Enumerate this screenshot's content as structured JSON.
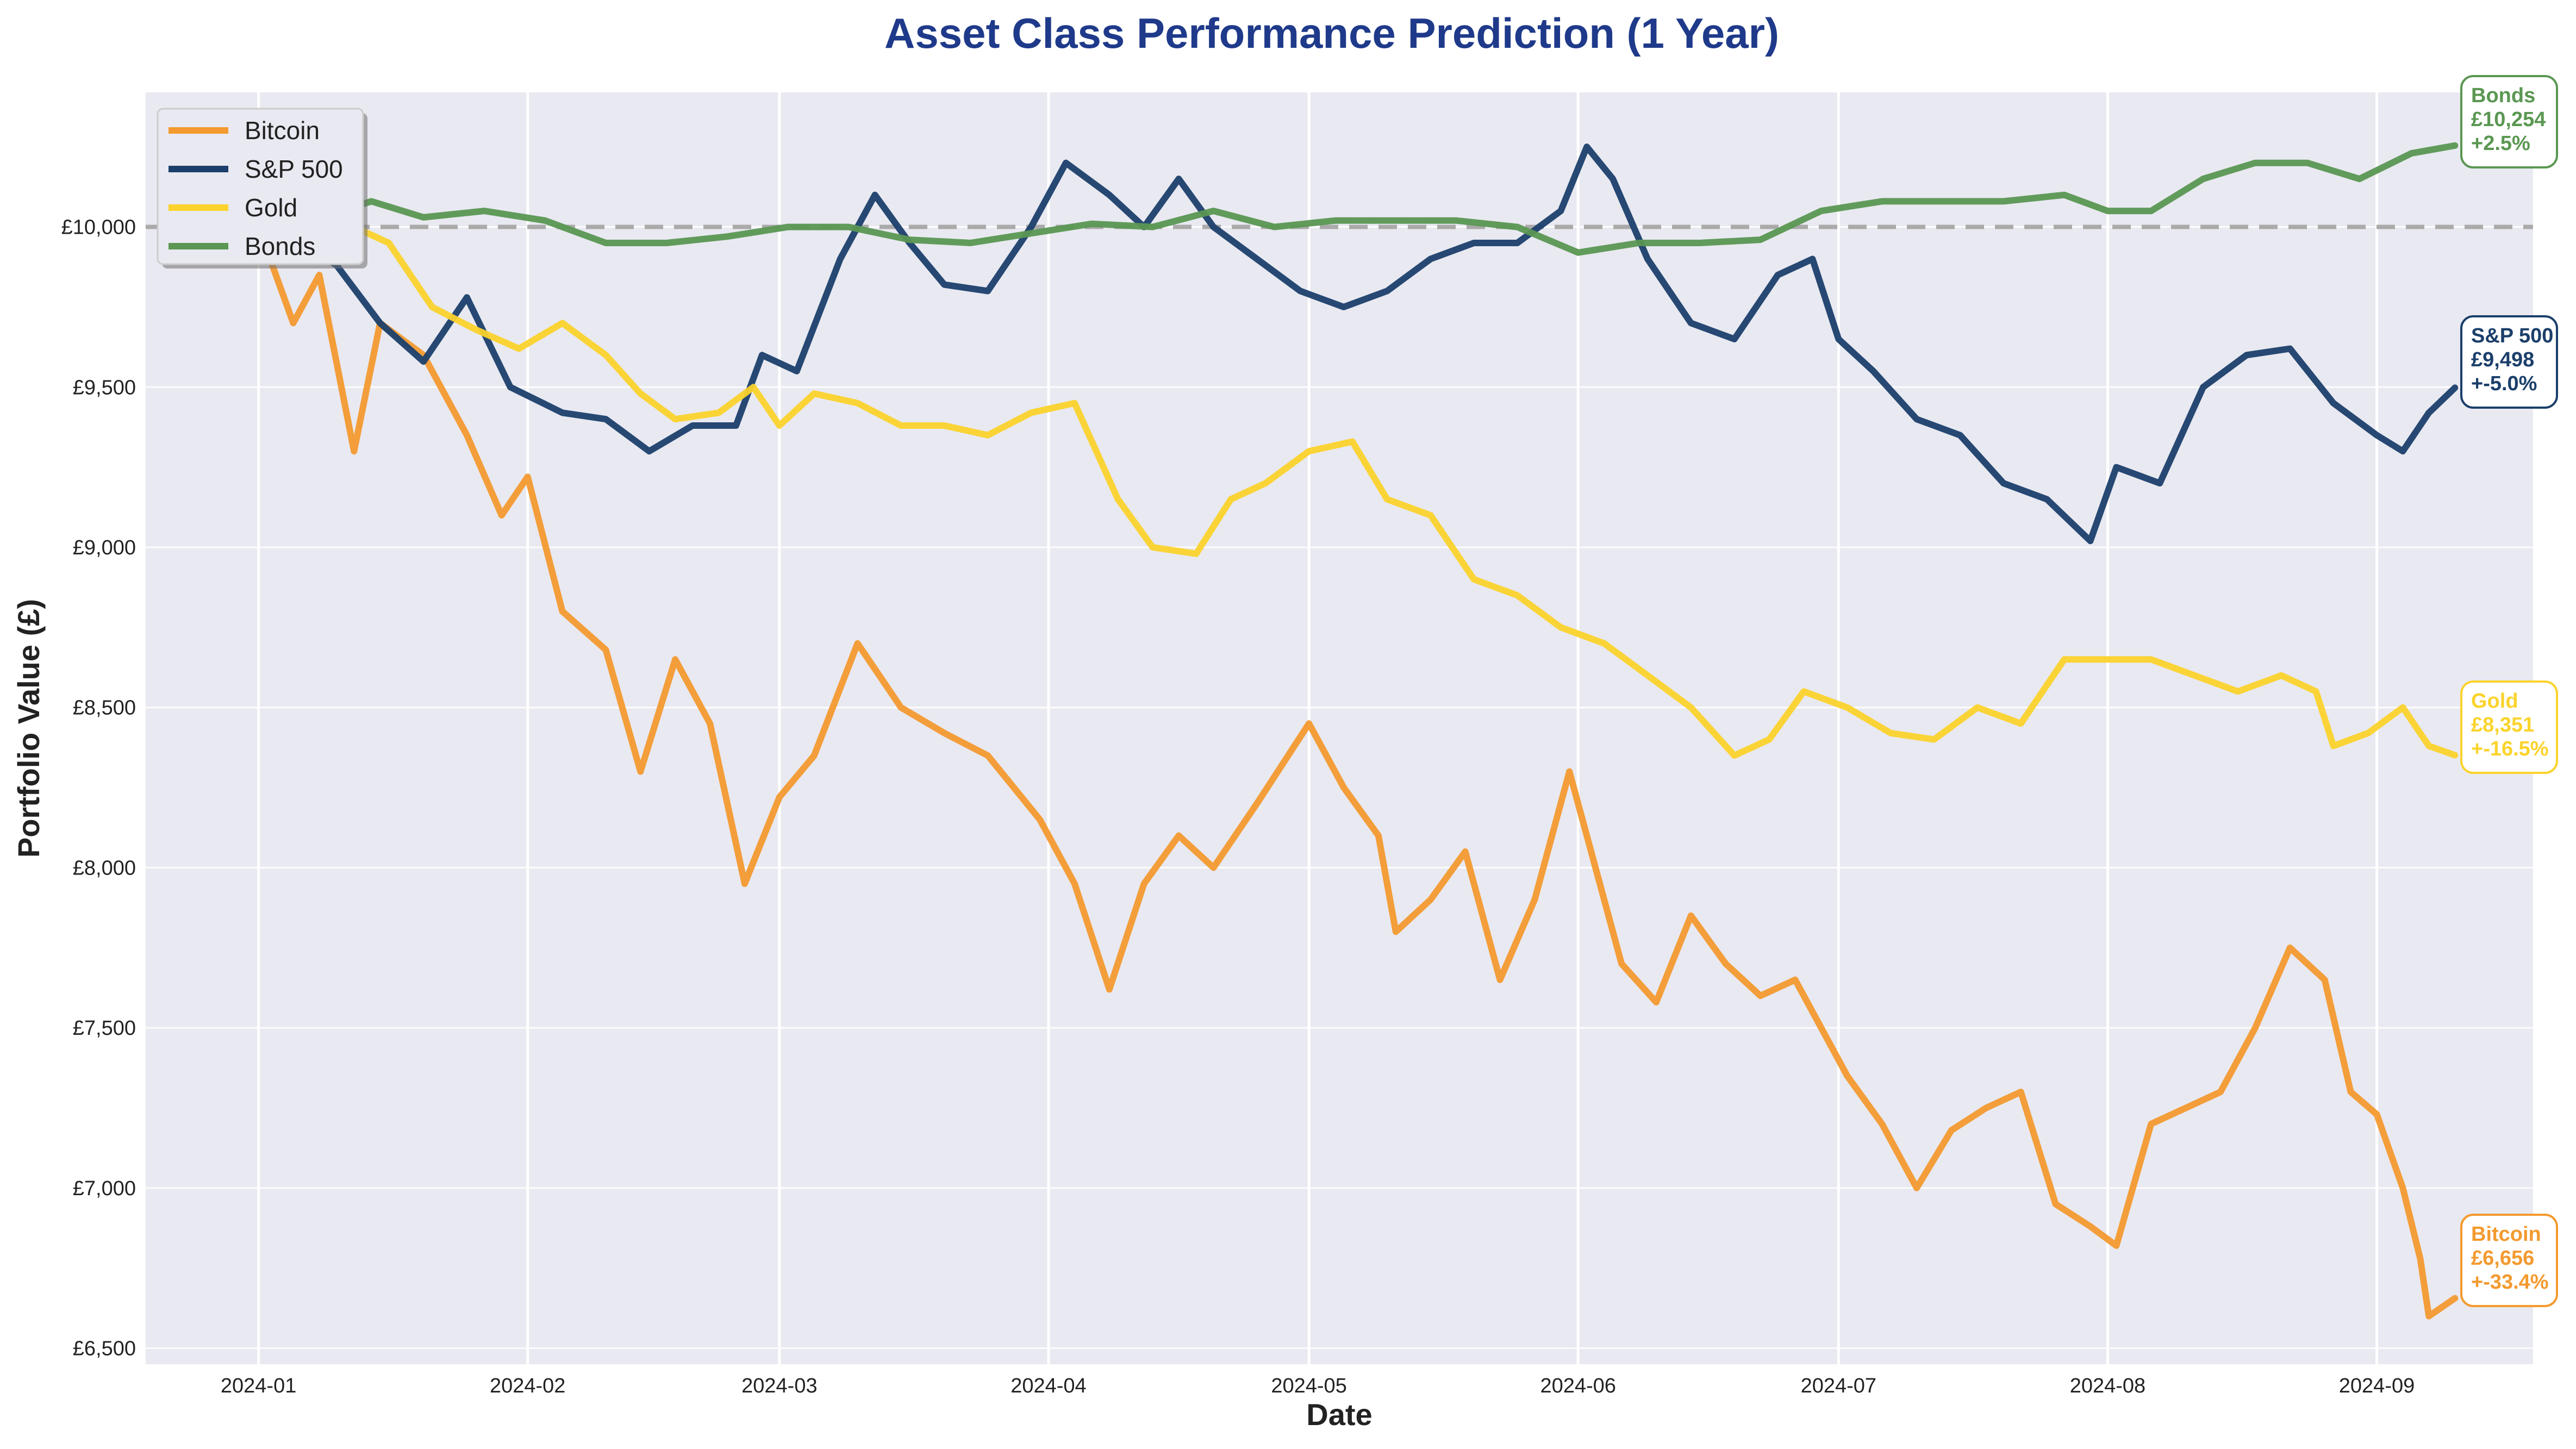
{
  "colors": {
    "background": "#ffffff",
    "plot_bg": "#e9e9f1",
    "grid": "#ffffff",
    "title": "#1f3a8a",
    "baseline": "#aaaaaa"
  },
  "chart_data": {
    "type": "line",
    "title": "Asset Class Performance Prediction (1 Year)",
    "xlabel": "Date",
    "ylabel": "Portfolio Value (£)",
    "x_ticks": [
      "2024-01",
      "2024-02",
      "2024-03",
      "2024-04",
      "2024-05",
      "2024-06",
      "2024-07",
      "2024-08",
      "2024-09"
    ],
    "y_ticks": [
      "£6,500",
      "£7,000",
      "£7,500",
      "£8,000",
      "£8,500",
      "£9,000",
      "£9,500",
      "£10,000"
    ],
    "y_tick_values": [
      6500,
      7000,
      7500,
      8000,
      8500,
      9000,
      9500,
      10000
    ],
    "ylim": [
      6450,
      10420
    ],
    "xlim": [
      "2023-12-19",
      "2024-09-19"
    ],
    "baseline": 10000,
    "grid": true,
    "legend_position": "top-left",
    "series": [
      {
        "name": "Bitcoin",
        "color": "#f39a2f",
        "final_value": "£6,656",
        "final_change": "+-33.4%",
        "points": [
          [
            "2024-01-01",
            10000
          ],
          [
            "2024-01-05",
            9700
          ],
          [
            "2024-01-08",
            9850
          ],
          [
            "2024-01-12",
            9300
          ],
          [
            "2024-01-15",
            9700
          ],
          [
            "2024-01-20",
            9600
          ],
          [
            "2024-01-25",
            9350
          ],
          [
            "2024-01-29",
            9100
          ],
          [
            "2024-02-01",
            9220
          ],
          [
            "2024-02-05",
            8800
          ],
          [
            "2024-02-10",
            8680
          ],
          [
            "2024-02-14",
            8300
          ],
          [
            "2024-02-18",
            8650
          ],
          [
            "2024-02-22",
            8450
          ],
          [
            "2024-02-26",
            7950
          ],
          [
            "2024-03-01",
            8220
          ],
          [
            "2024-03-05",
            8350
          ],
          [
            "2024-03-10",
            8700
          ],
          [
            "2024-03-15",
            8500
          ],
          [
            "2024-03-20",
            8420
          ],
          [
            "2024-03-25",
            8350
          ],
          [
            "2024-03-31",
            8150
          ],
          [
            "2024-04-04",
            7950
          ],
          [
            "2024-04-08",
            7620
          ],
          [
            "2024-04-12",
            7950
          ],
          [
            "2024-04-16",
            8100
          ],
          [
            "2024-04-20",
            8000
          ],
          [
            "2024-04-25",
            8200
          ],
          [
            "2024-05-01",
            8450
          ],
          [
            "2024-05-05",
            8250
          ],
          [
            "2024-05-09",
            8100
          ],
          [
            "2024-05-11",
            7800
          ],
          [
            "2024-05-15",
            7900
          ],
          [
            "2024-05-19",
            8050
          ],
          [
            "2024-05-23",
            7650
          ],
          [
            "2024-05-27",
            7900
          ],
          [
            "2024-05-31",
            8300
          ],
          [
            "2024-06-02",
            8100
          ],
          [
            "2024-06-06",
            7700
          ],
          [
            "2024-06-10",
            7580
          ],
          [
            "2024-06-14",
            7850
          ],
          [
            "2024-06-18",
            7700
          ],
          [
            "2024-06-22",
            7600
          ],
          [
            "2024-06-26",
            7650
          ],
          [
            "2024-06-29",
            7500
          ],
          [
            "2024-07-02",
            7350
          ],
          [
            "2024-07-06",
            7200
          ],
          [
            "2024-07-10",
            7000
          ],
          [
            "2024-07-14",
            7180
          ],
          [
            "2024-07-18",
            7250
          ],
          [
            "2024-07-22",
            7300
          ],
          [
            "2024-07-26",
            6950
          ],
          [
            "2024-07-30",
            6880
          ],
          [
            "2024-08-02",
            6820
          ],
          [
            "2024-08-06",
            7200
          ],
          [
            "2024-08-10",
            7250
          ],
          [
            "2024-08-14",
            7300
          ],
          [
            "2024-08-18",
            7500
          ],
          [
            "2024-08-22",
            7750
          ],
          [
            "2024-08-26",
            7650
          ],
          [
            "2024-08-29",
            7300
          ],
          [
            "2024-09-01",
            7230
          ],
          [
            "2024-09-04",
            7000
          ],
          [
            "2024-09-06",
            6780
          ],
          [
            "2024-09-07",
            6600
          ],
          [
            "2024-09-10",
            6656
          ]
        ]
      },
      {
        "name": "S&P 500",
        "color": "#1b3f6b",
        "final_value": "£9,498",
        "final_change": "+-5.0%",
        "points": [
          [
            "2024-01-01",
            10000
          ],
          [
            "2024-01-06",
            9950
          ],
          [
            "2024-01-10",
            9880
          ],
          [
            "2024-01-15",
            9700
          ],
          [
            "2024-01-20",
            9580
          ],
          [
            "2024-01-25",
            9780
          ],
          [
            "2024-01-30",
            9500
          ],
          [
            "2024-02-05",
            9420
          ],
          [
            "2024-02-10",
            9400
          ],
          [
            "2024-02-15",
            9300
          ],
          [
            "2024-02-20",
            9380
          ],
          [
            "2024-02-25",
            9380
          ],
          [
            "2024-02-28",
            9600
          ],
          [
            "2024-03-03",
            9550
          ],
          [
            "2024-03-08",
            9900
          ],
          [
            "2024-03-12",
            10100
          ],
          [
            "2024-03-16",
            9950
          ],
          [
            "2024-03-20",
            9820
          ],
          [
            "2024-03-25",
            9800
          ],
          [
            "2024-03-30",
            10000
          ],
          [
            "2024-04-03",
            10200
          ],
          [
            "2024-04-08",
            10100
          ],
          [
            "2024-04-12",
            10000
          ],
          [
            "2024-04-16",
            10150
          ],
          [
            "2024-04-20",
            10000
          ],
          [
            "2024-04-25",
            9900
          ],
          [
            "2024-04-30",
            9800
          ],
          [
            "2024-05-05",
            9750
          ],
          [
            "2024-05-10",
            9800
          ],
          [
            "2024-05-15",
            9900
          ],
          [
            "2024-05-20",
            9950
          ],
          [
            "2024-05-25",
            9950
          ],
          [
            "2024-05-30",
            10050
          ],
          [
            "2024-06-02",
            10250
          ],
          [
            "2024-06-05",
            10150
          ],
          [
            "2024-06-09",
            9900
          ],
          [
            "2024-06-14",
            9700
          ],
          [
            "2024-06-19",
            9650
          ],
          [
            "2024-06-24",
            9850
          ],
          [
            "2024-06-28",
            9900
          ],
          [
            "2024-07-01",
            9650
          ],
          [
            "2024-07-05",
            9550
          ],
          [
            "2024-07-10",
            9400
          ],
          [
            "2024-07-15",
            9350
          ],
          [
            "2024-07-20",
            9200
          ],
          [
            "2024-07-25",
            9150
          ],
          [
            "2024-07-30",
            9020
          ],
          [
            "2024-08-02",
            9250
          ],
          [
            "2024-08-07",
            9200
          ],
          [
            "2024-08-12",
            9500
          ],
          [
            "2024-08-17",
            9600
          ],
          [
            "2024-08-22",
            9620
          ],
          [
            "2024-08-27",
            9450
          ],
          [
            "2024-09-01",
            9350
          ],
          [
            "2024-09-04",
            9300
          ],
          [
            "2024-09-07",
            9420
          ],
          [
            "2024-09-10",
            9498
          ]
        ]
      },
      {
        "name": "Gold",
        "color": "#fbd32c",
        "final_value": "£8,351",
        "final_change": "+-16.5%",
        "points": [
          [
            "2024-01-01",
            10000
          ],
          [
            "2024-01-06",
            10020
          ],
          [
            "2024-01-12",
            10000
          ],
          [
            "2024-01-16",
            9950
          ],
          [
            "2024-01-21",
            9750
          ],
          [
            "2024-01-26",
            9680
          ],
          [
            "2024-01-31",
            9620
          ],
          [
            "2024-02-05",
            9700
          ],
          [
            "2024-02-10",
            9600
          ],
          [
            "2024-02-14",
            9480
          ],
          [
            "2024-02-18",
            9400
          ],
          [
            "2024-02-23",
            9420
          ],
          [
            "2024-02-27",
            9500
          ],
          [
            "2024-03-01",
            9380
          ],
          [
            "2024-03-05",
            9480
          ],
          [
            "2024-03-10",
            9450
          ],
          [
            "2024-03-15",
            9380
          ],
          [
            "2024-03-20",
            9380
          ],
          [
            "2024-03-25",
            9350
          ],
          [
            "2024-03-30",
            9420
          ],
          [
            "2024-04-04",
            9450
          ],
          [
            "2024-04-09",
            9150
          ],
          [
            "2024-04-13",
            9000
          ],
          [
            "2024-04-18",
            8980
          ],
          [
            "2024-04-22",
            9150
          ],
          [
            "2024-04-26",
            9200
          ],
          [
            "2024-05-01",
            9300
          ],
          [
            "2024-05-06",
            9330
          ],
          [
            "2024-05-10",
            9150
          ],
          [
            "2024-05-15",
            9100
          ],
          [
            "2024-05-20",
            8900
          ],
          [
            "2024-05-25",
            8850
          ],
          [
            "2024-05-30",
            8750
          ],
          [
            "2024-06-04",
            8700
          ],
          [
            "2024-06-09",
            8600
          ],
          [
            "2024-06-14",
            8500
          ],
          [
            "2024-06-19",
            8350
          ],
          [
            "2024-06-23",
            8400
          ],
          [
            "2024-06-27",
            8550
          ],
          [
            "2024-07-02",
            8500
          ],
          [
            "2024-07-07",
            8420
          ],
          [
            "2024-07-12",
            8400
          ],
          [
            "2024-07-17",
            8500
          ],
          [
            "2024-07-22",
            8450
          ],
          [
            "2024-07-27",
            8650
          ],
          [
            "2024-08-01",
            8650
          ],
          [
            "2024-08-06",
            8650
          ],
          [
            "2024-08-11",
            8600
          ],
          [
            "2024-08-16",
            8550
          ],
          [
            "2024-08-21",
            8600
          ],
          [
            "2024-08-25",
            8550
          ],
          [
            "2024-08-27",
            8380
          ],
          [
            "2024-08-31",
            8420
          ],
          [
            "2024-09-04",
            8500
          ],
          [
            "2024-09-07",
            8380
          ],
          [
            "2024-09-10",
            8351
          ]
        ]
      },
      {
        "name": "Bonds",
        "color": "#5a9752",
        "final_value": "£10,254",
        "final_change": "+2.5%",
        "points": [
          [
            "2024-01-01",
            10000
          ],
          [
            "2024-01-07",
            10020
          ],
          [
            "2024-01-14",
            10080
          ],
          [
            "2024-01-20",
            10030
          ],
          [
            "2024-01-27",
            10050
          ],
          [
            "2024-02-03",
            10020
          ],
          [
            "2024-02-10",
            9950
          ],
          [
            "2024-02-17",
            9950
          ],
          [
            "2024-02-24",
            9970
          ],
          [
            "2024-03-02",
            10000
          ],
          [
            "2024-03-09",
            10000
          ],
          [
            "2024-03-16",
            9960
          ],
          [
            "2024-03-23",
            9950
          ],
          [
            "2024-03-30",
            9980
          ],
          [
            "2024-04-06",
            10010
          ],
          [
            "2024-04-13",
            10000
          ],
          [
            "2024-04-20",
            10050
          ],
          [
            "2024-04-27",
            10000
          ],
          [
            "2024-05-04",
            10020
          ],
          [
            "2024-05-11",
            10020
          ],
          [
            "2024-05-18",
            10020
          ],
          [
            "2024-05-25",
            10000
          ],
          [
            "2024-06-01",
            9920
          ],
          [
            "2024-06-08",
            9950
          ],
          [
            "2024-06-15",
            9950
          ],
          [
            "2024-06-22",
            9960
          ],
          [
            "2024-06-29",
            10050
          ],
          [
            "2024-07-06",
            10080
          ],
          [
            "2024-07-13",
            10080
          ],
          [
            "2024-07-20",
            10080
          ],
          [
            "2024-07-27",
            10100
          ],
          [
            "2024-08-01",
            10050
          ],
          [
            "2024-08-06",
            10050
          ],
          [
            "2024-08-12",
            10150
          ],
          [
            "2024-08-18",
            10200
          ],
          [
            "2024-08-24",
            10200
          ],
          [
            "2024-08-30",
            10150
          ],
          [
            "2024-09-05",
            10230
          ],
          [
            "2024-09-10",
            10254
          ]
        ]
      }
    ]
  }
}
